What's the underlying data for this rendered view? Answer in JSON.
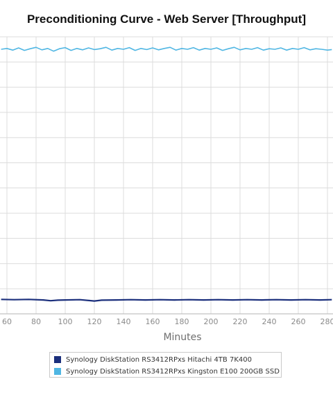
{
  "chart_data": {
    "type": "line",
    "title": "Preconditioning Curve - Web Server [Throughput]",
    "xlabel": "Minutes",
    "ylabel": "",
    "x_ticks": [
      60,
      80,
      100,
      120,
      140,
      160,
      180,
      200,
      220,
      240,
      260,
      280
    ],
    "xlim": [
      56,
      283
    ],
    "grid": true,
    "legend_position": "bottom",
    "series": [
      {
        "name": "Synology DiskStation RS3412RPxs Hitachi 4TB 7K400",
        "color": "#1b2f7c",
        "level": 0.05,
        "points": [
          [
            56,
            0.052
          ],
          [
            65,
            0.051
          ],
          [
            75,
            0.052
          ],
          [
            85,
            0.05
          ],
          [
            90,
            0.047
          ],
          [
            95,
            0.049
          ],
          [
            100,
            0.05
          ],
          [
            110,
            0.051
          ],
          [
            120,
            0.046
          ],
          [
            125,
            0.049
          ],
          [
            135,
            0.05
          ],
          [
            145,
            0.051
          ],
          [
            155,
            0.05
          ],
          [
            165,
            0.051
          ],
          [
            175,
            0.05
          ],
          [
            185,
            0.051
          ],
          [
            195,
            0.05
          ],
          [
            205,
            0.051
          ],
          [
            215,
            0.05
          ],
          [
            225,
            0.051
          ],
          [
            235,
            0.05
          ],
          [
            245,
            0.051
          ],
          [
            255,
            0.05
          ],
          [
            265,
            0.051
          ],
          [
            275,
            0.05
          ],
          [
            283,
            0.051
          ]
        ]
      },
      {
        "name": "Synology DiskStation RS3412RPxs Kingston E100 200GB SSD",
        "color": "#4fb6e3",
        "level": 0.955,
        "points": [
          [
            56,
            0.955
          ],
          [
            60,
            0.958
          ],
          [
            64,
            0.952
          ],
          [
            68,
            0.96
          ],
          [
            72,
            0.951
          ],
          [
            76,
            0.957
          ],
          [
            80,
            0.962
          ],
          [
            84,
            0.953
          ],
          [
            88,
            0.958
          ],
          [
            92,
            0.948
          ],
          [
            96,
            0.957
          ],
          [
            100,
            0.961
          ],
          [
            104,
            0.951
          ],
          [
            108,
            0.958
          ],
          [
            112,
            0.953
          ],
          [
            116,
            0.96
          ],
          [
            120,
            0.954
          ],
          [
            124,
            0.957
          ],
          [
            128,
            0.962
          ],
          [
            132,
            0.952
          ],
          [
            136,
            0.958
          ],
          [
            140,
            0.955
          ],
          [
            144,
            0.961
          ],
          [
            148,
            0.951
          ],
          [
            152,
            0.958
          ],
          [
            156,
            0.954
          ],
          [
            160,
            0.96
          ],
          [
            164,
            0.953
          ],
          [
            168,
            0.958
          ],
          [
            172,
            0.962
          ],
          [
            176,
            0.952
          ],
          [
            180,
            0.958
          ],
          [
            184,
            0.955
          ],
          [
            188,
            0.961
          ],
          [
            192,
            0.952
          ],
          [
            196,
            0.958
          ],
          [
            200,
            0.955
          ],
          [
            204,
            0.96
          ],
          [
            208,
            0.951
          ],
          [
            212,
            0.957
          ],
          [
            216,
            0.962
          ],
          [
            220,
            0.953
          ],
          [
            224,
            0.958
          ],
          [
            228,
            0.955
          ],
          [
            232,
            0.961
          ],
          [
            236,
            0.952
          ],
          [
            240,
            0.957
          ],
          [
            244,
            0.955
          ],
          [
            248,
            0.96
          ],
          [
            252,
            0.952
          ],
          [
            256,
            0.958
          ],
          [
            260,
            0.955
          ],
          [
            264,
            0.961
          ],
          [
            268,
            0.953
          ],
          [
            272,
            0.957
          ],
          [
            276,
            0.955
          ],
          [
            280,
            0.952
          ],
          [
            283,
            0.954
          ]
        ]
      }
    ]
  }
}
